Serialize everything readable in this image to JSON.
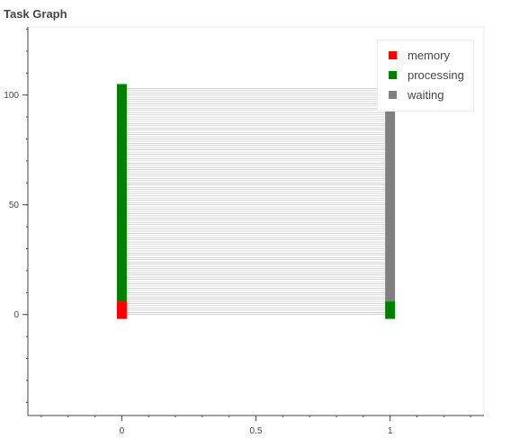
{
  "chart_data": {
    "title": "Task Graph",
    "type": "task-graph",
    "xlim": [
      -0.35,
      1.35
    ],
    "ylim": [
      -46,
      131
    ],
    "x_ticks": [
      0,
      0.5,
      1
    ],
    "x_tick_labels": [
      "0",
      "0.5",
      "1"
    ],
    "y_ticks": [
      0,
      50,
      100
    ],
    "y_tick_labels": [
      "0",
      "50",
      "100"
    ],
    "grid": false,
    "legend_placement": "top-right",
    "legend": [
      {
        "name": "memory",
        "color": "#ff0000"
      },
      {
        "name": "processing",
        "color": "#008000"
      },
      {
        "name": "waiting",
        "color": "#808080"
      }
    ],
    "nodes": [
      {
        "x": 0,
        "y_from": -2,
        "y_to": 6,
        "state": "memory"
      },
      {
        "x": 0,
        "y_from": 6,
        "y_to": 105,
        "state": "processing"
      },
      {
        "x": 1,
        "y_from": -2,
        "y_to": 6,
        "state": "processing"
      },
      {
        "x": 1,
        "y_from": 6,
        "y_to": 103,
        "state": "waiting"
      }
    ],
    "edges": {
      "x_from": 0,
      "x_to": 1,
      "y_start": 0,
      "y_end": 103,
      "count": 104,
      "color": "#bbbbbb"
    }
  }
}
